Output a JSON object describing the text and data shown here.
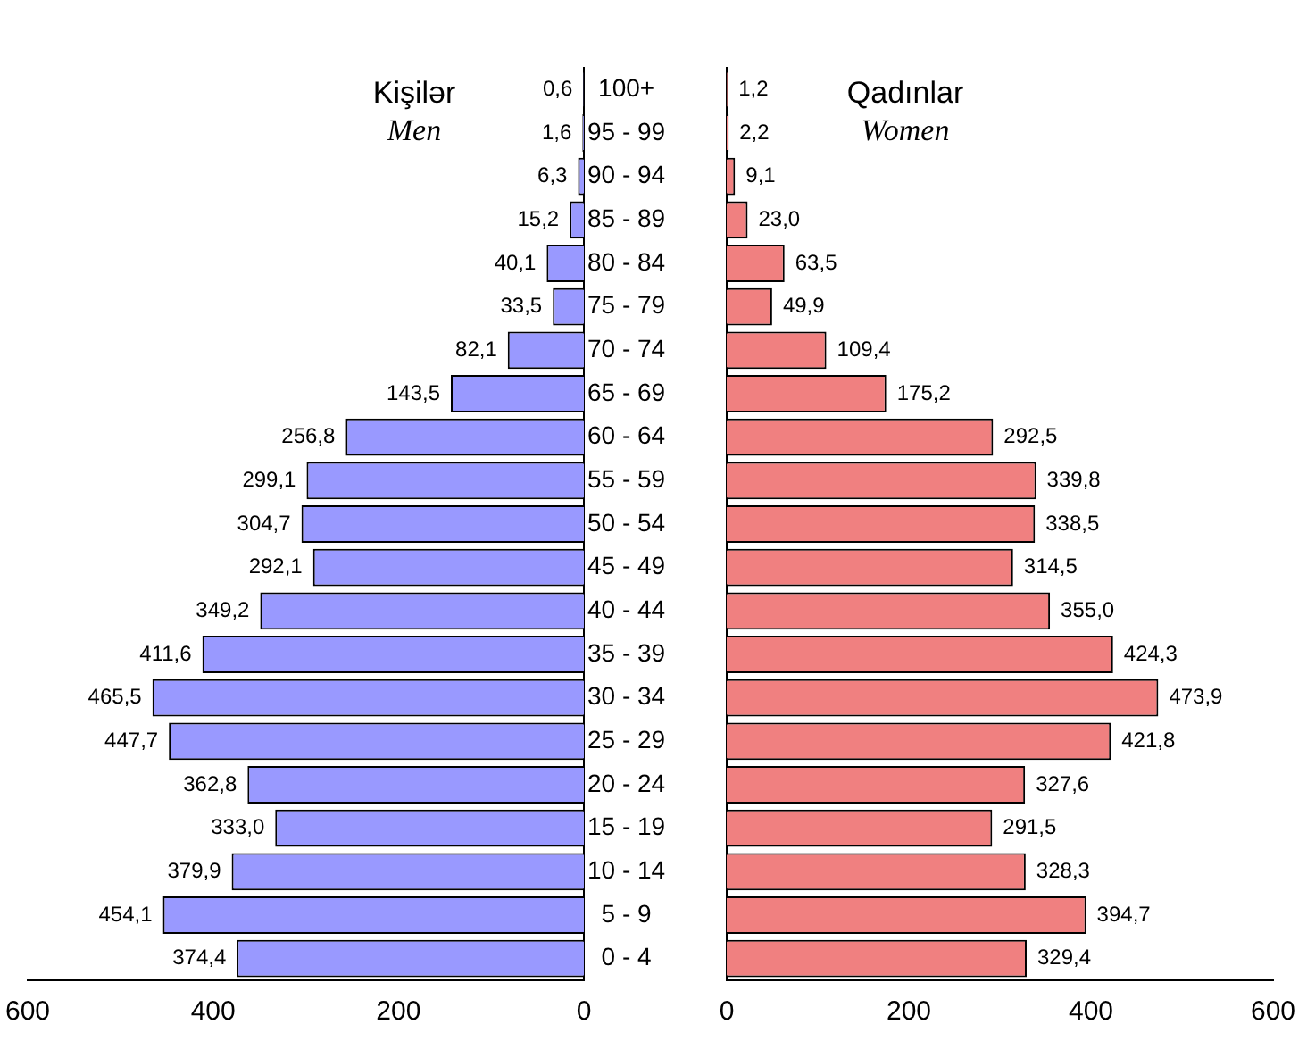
{
  "chart_data": [
    {
      "type": "bar",
      "orientation": "horizontal",
      "title": "Kişilər",
      "subtitle": "Men",
      "categories": [
        "100+",
        "95 - 99",
        "90 - 94",
        "85 - 89",
        "80 - 84",
        "75 - 79",
        "70 - 74",
        "65 - 69",
        "60 - 64",
        "55 - 59",
        "50 - 54",
        "45 - 49",
        "40 - 44",
        "35 - 39",
        "30 - 34",
        "25 - 29",
        "20 - 24",
        "15 - 19",
        "10 - 14",
        "5 - 9",
        "0 - 4"
      ],
      "values": [
        0.6,
        1.6,
        6.3,
        15.2,
        40.1,
        33.5,
        82.1,
        143.5,
        256.8,
        299.1,
        304.7,
        292.1,
        349.2,
        411.6,
        465.5,
        447.7,
        362.8,
        333.0,
        379.9,
        454.1,
        374.4
      ],
      "value_labels": [
        "0,6",
        "1,6",
        "6,3",
        "15,2",
        "40,1",
        "33,5",
        "82,1",
        "143,5",
        "256,8",
        "299,1",
        "304,7",
        "292,1",
        "349,2",
        "411,6",
        "465,5",
        "447,7",
        "362,8",
        "333,0",
        "379,9",
        "454,1",
        "374,4"
      ],
      "color": "#9999ff",
      "xlim": [
        600,
        0
      ],
      "xticks": [
        600,
        400,
        200,
        0
      ],
      "grid": false,
      "legend": false
    },
    {
      "type": "bar",
      "orientation": "horizontal",
      "title": "Qadınlar",
      "subtitle": "Women",
      "categories": [
        null,
        null,
        null,
        null,
        null,
        null,
        null,
        null,
        null,
        null,
        null,
        null,
        null,
        null,
        null,
        null,
        null,
        null,
        null,
        null,
        null
      ],
      "values": [
        1.2,
        2.2,
        9.1,
        23.0,
        63.5,
        49.9,
        109.4,
        175.2,
        292.5,
        339.8,
        338.5,
        314.5,
        355.0,
        424.3,
        473.9,
        421.8,
        327.6,
        291.5,
        328.3,
        394.7,
        329.4
      ],
      "value_labels": [
        "1,2",
        "2,2",
        "9,1",
        "23,0",
        "63,5",
        "49,9",
        "109,4",
        "175,2",
        "292,5",
        "339,8",
        "338,5",
        "314,5",
        "355,0",
        "424,3",
        "473,9",
        "421,8",
        "327,6",
        "291,5",
        "328,3",
        "394,7",
        "329,4"
      ],
      "color": "#f08080",
      "xlim": [
        0,
        600
      ],
      "xticks": [
        0,
        200,
        400,
        600
      ],
      "grid": false,
      "legend": false,
      "tick_labels": "x"
    }
  ]
}
